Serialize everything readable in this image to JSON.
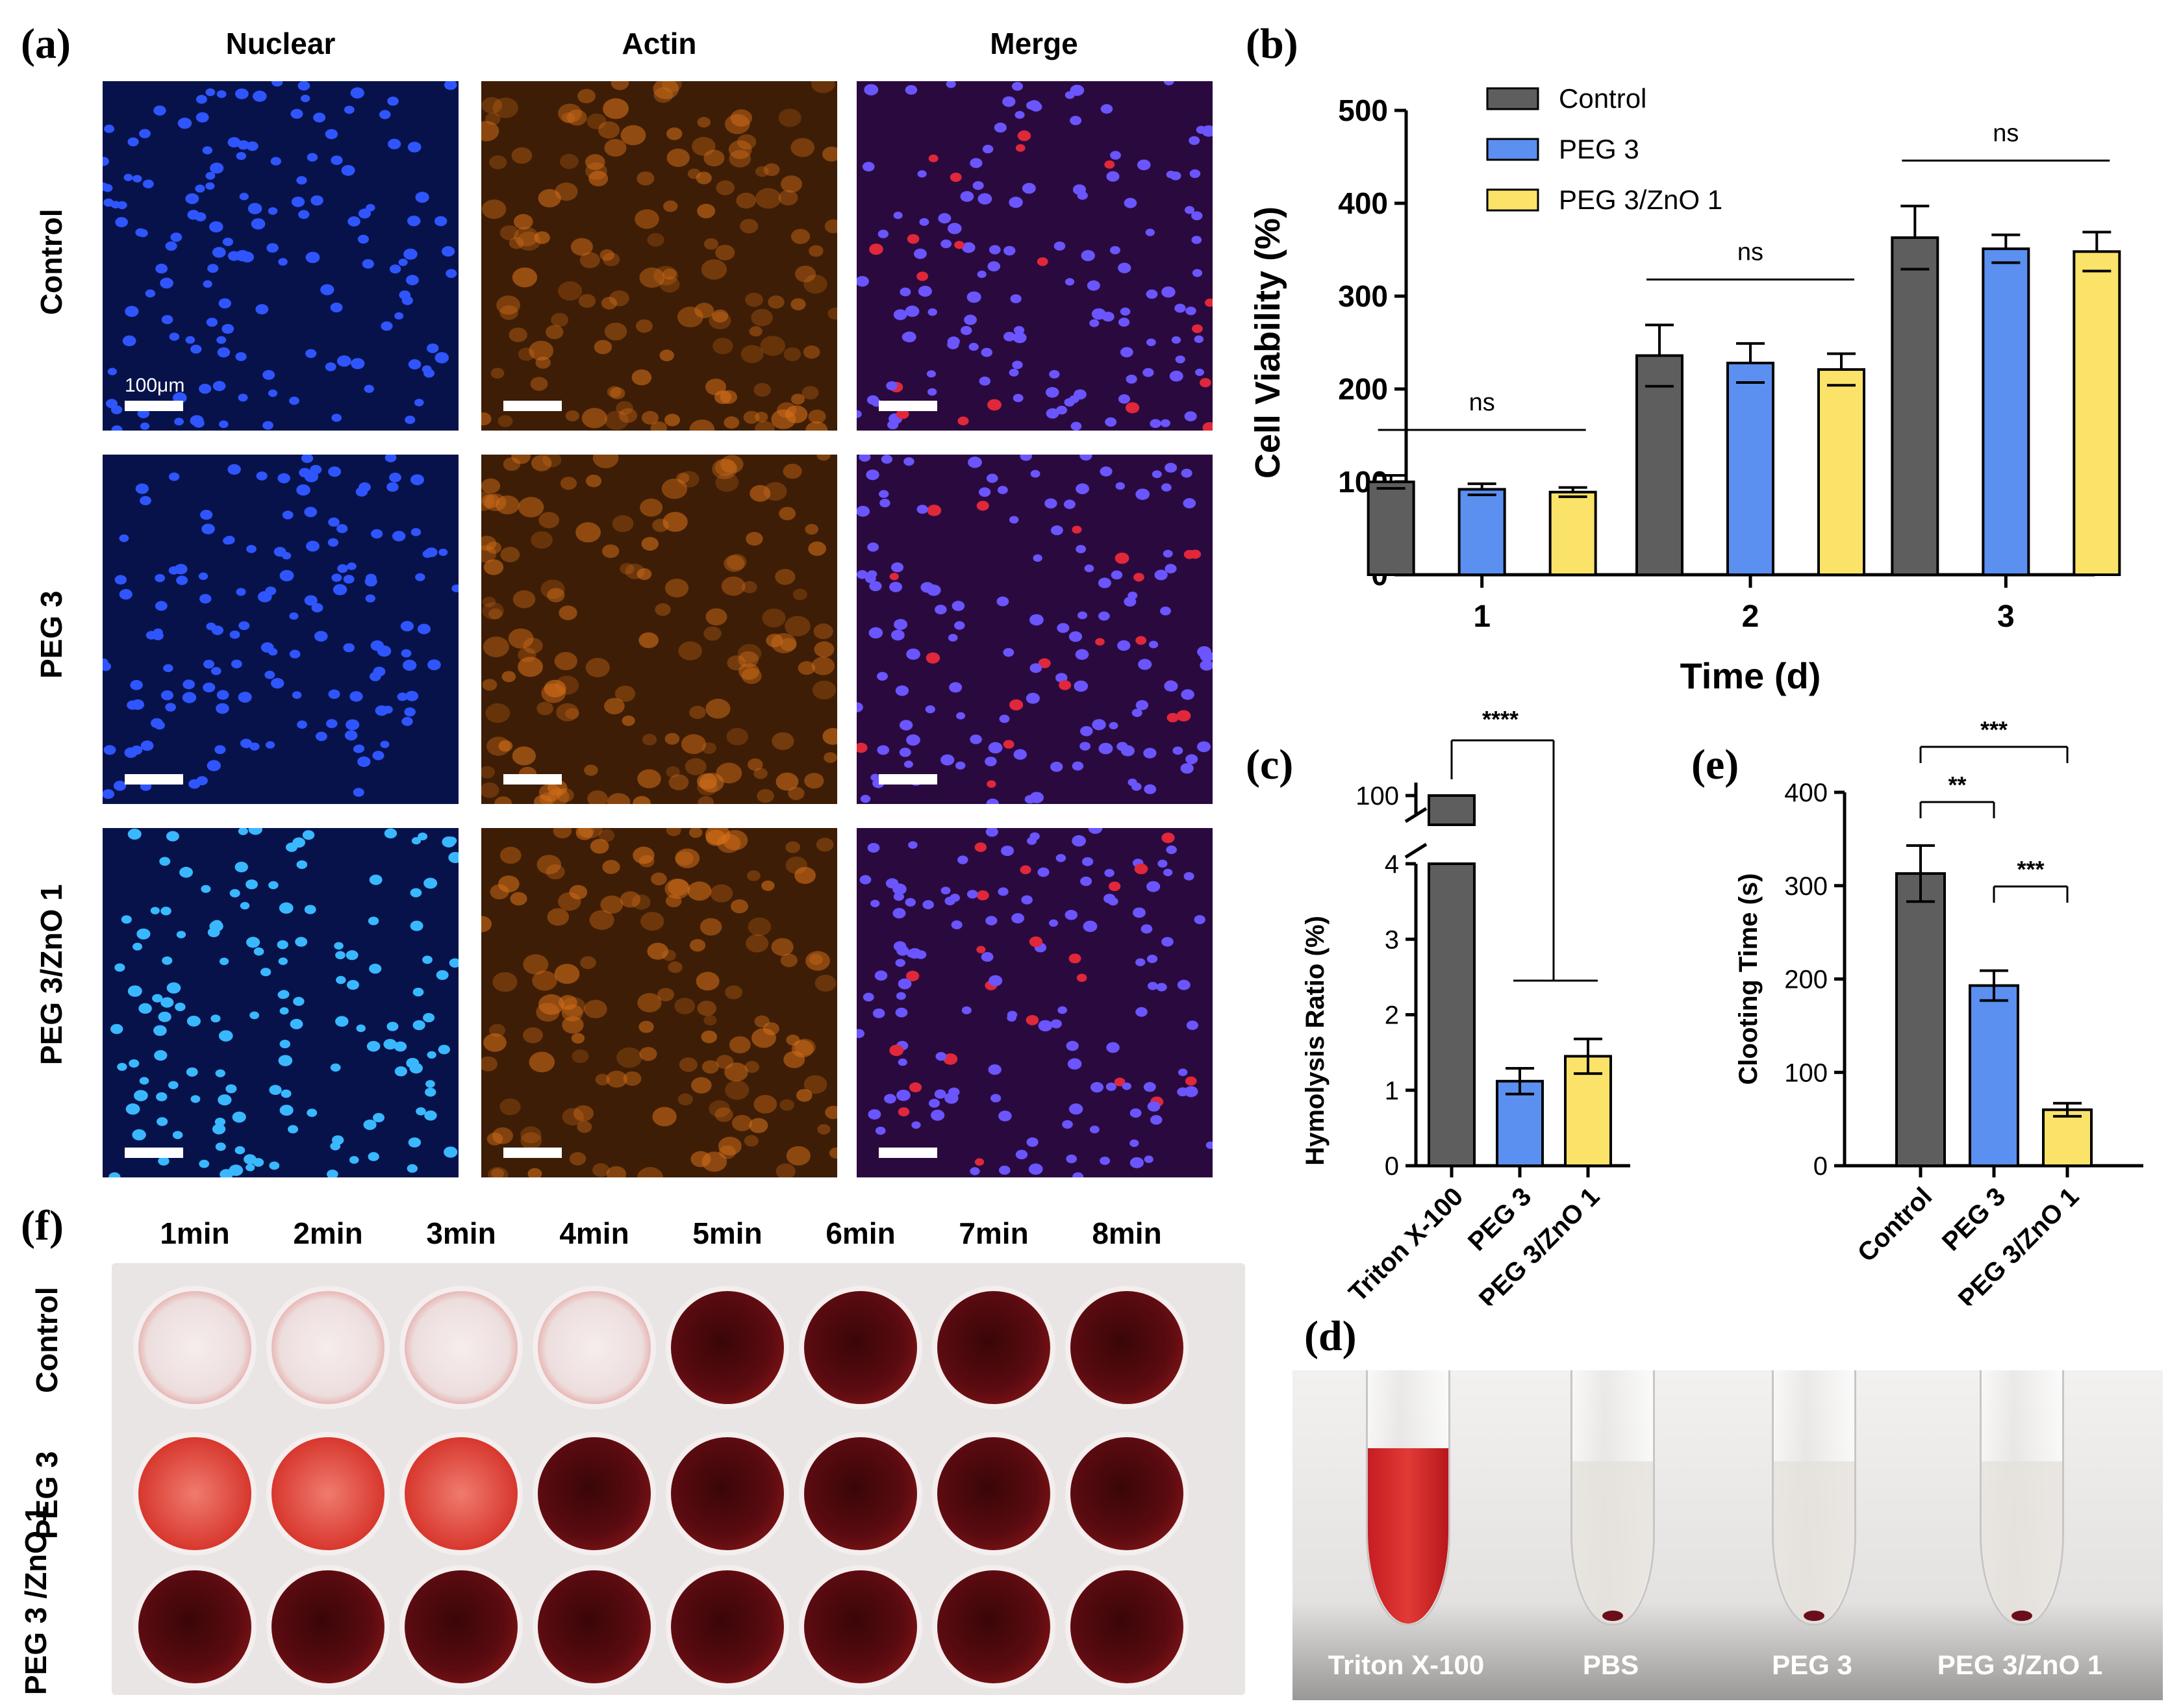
{
  "panels": {
    "a": "(a)",
    "b": "(b)",
    "c": "(c)",
    "d": "(d)",
    "e": "(e)",
    "f": "(f)"
  },
  "micrographs": {
    "columns": [
      "Nuclear",
      "Actin",
      "Merge"
    ],
    "rows": [
      "Control",
      "PEG 3",
      "PEG 3/ZnO 1"
    ],
    "scale_label": "100μm"
  },
  "colors": {
    "control": "#5e5e5e",
    "peg3": "#5b8ff0",
    "peg3zno1": "#fbe36a",
    "nuclear": "#2a4cff",
    "actin": "#d6701a",
    "blood": "#c11a1a"
  },
  "chart_data": [
    {
      "id": "b",
      "type": "bar",
      "categories": [
        "1",
        "2",
        "3"
      ],
      "series": [
        {
          "name": "Control",
          "values": [
            100,
            236,
            363
          ],
          "errors": [
            7,
            33,
            34
          ]
        },
        {
          "name": "PEG 3",
          "values": [
            92,
            228,
            351
          ],
          "errors": [
            6,
            21,
            15
          ]
        },
        {
          "name": "PEG 3/ZnO 1",
          "values": [
            89,
            221,
            348
          ],
          "errors": [
            5,
            17,
            21
          ]
        }
      ],
      "xlabel": "Time (d)",
      "ylabel": "Cell Viability (%)",
      "ylim": [
        0,
        500
      ],
      "yticks": [
        "0",
        "100",
        "200",
        "300",
        "400",
        "500"
      ],
      "significance": [
        "ns",
        "ns",
        "ns"
      ],
      "legend": "top-left"
    },
    {
      "id": "c",
      "type": "bar",
      "categories": [
        "Triton X-100",
        "PEG 3",
        "PEG 3/ZnO 1"
      ],
      "values": [
        100,
        1.12,
        1.45
      ],
      "errors": [
        0,
        0.17,
        0.23
      ],
      "ylabel": "Hymolysis Ratio (%)",
      "axis_break": [
        4,
        100
      ],
      "yticks": [
        "0",
        "1",
        "2",
        "3",
        "4",
        "100"
      ],
      "significance": [
        "****"
      ]
    },
    {
      "id": "e",
      "type": "bar",
      "categories": [
        "Control",
        "PEG 3",
        "PEG 3/ZnO 1"
      ],
      "values": [
        313,
        193,
        60
      ],
      "errors": [
        30,
        16,
        7
      ],
      "ylabel": "Clooting Time (s)",
      "ylim": [
        0,
        400
      ],
      "yticks": [
        "0",
        "100",
        "200",
        "300",
        "400"
      ],
      "significance": [
        "***",
        "**",
        "***"
      ]
    }
  ],
  "clotting_plate": {
    "times": [
      "1min",
      "2min",
      "3min",
      "4min",
      "5min",
      "6min",
      "7min",
      "8min"
    ],
    "rows": [
      "Control",
      "PEG 3",
      "PEG 3 /ZnO 1"
    ],
    "clotted_from": [
      4,
      3,
      0
    ]
  },
  "tubes": {
    "labels": [
      "Triton X-100",
      "PBS",
      "PEG 3",
      "PEG 3/ZnO 1"
    ]
  }
}
